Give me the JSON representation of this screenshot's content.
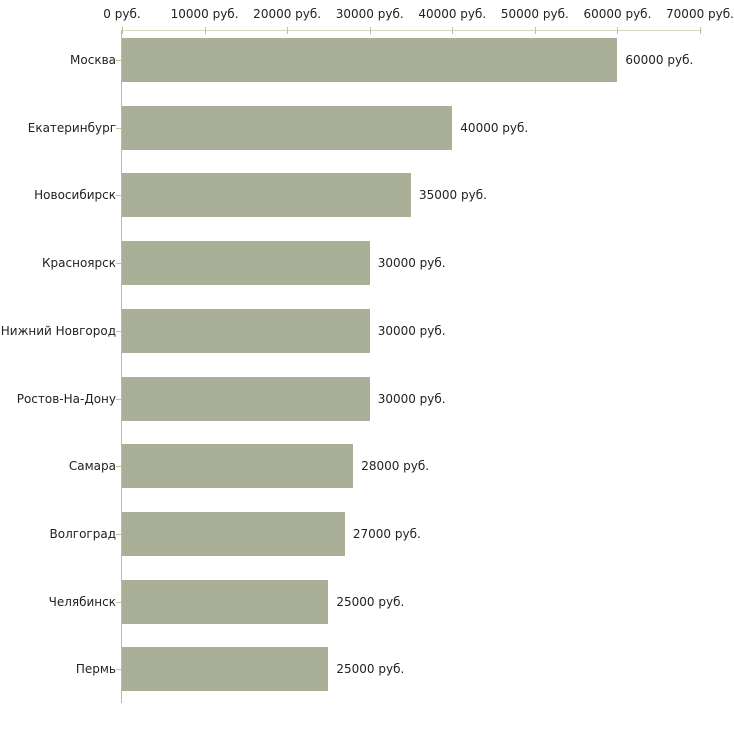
{
  "chart_data": {
    "type": "bar",
    "orientation": "horizontal",
    "title": "",
    "xlabel": "",
    "ylabel": "",
    "unit": "руб.",
    "xlim": [
      0,
      70000
    ],
    "grid": false,
    "legend_position": "none",
    "categories": [
      "Москва",
      "Екатеринбург",
      "Новосибирск",
      "Красноярск",
      "Нижний Новгород",
      "Ростов-На-Дону",
      "Самара",
      "Волгоград",
      "Челябинск",
      "Пермь"
    ],
    "values": [
      60000,
      40000,
      35000,
      30000,
      30000,
      30000,
      28000,
      27000,
      25000,
      25000
    ],
    "value_labels": [
      "60000 руб.",
      "40000 руб.",
      "35000 руб.",
      "30000 руб.",
      "30000 руб.",
      "30000 руб.",
      "28000 руб.",
      "27000 руб.",
      "25000 руб.",
      "25000 руб."
    ],
    "x_ticks": [
      {
        "value": 0,
        "label": "0 руб."
      },
      {
        "value": 10000,
        "label": "10000 руб."
      },
      {
        "value": 20000,
        "label": "20000 руб."
      },
      {
        "value": 30000,
        "label": "30000 руб."
      },
      {
        "value": 40000,
        "label": "40000 руб."
      },
      {
        "value": 50000,
        "label": "50000 руб."
      },
      {
        "value": 60000,
        "label": "60000 руб."
      },
      {
        "value": 70000,
        "label": "70000 руб."
      }
    ],
    "colors": {
      "bar": "#aab098",
      "x_axis_line": "#d8d5c2",
      "y_axis_line": "#b9b9b9",
      "tick": "#c2c29e",
      "text": "#222222",
      "background": "#ffffff"
    }
  }
}
